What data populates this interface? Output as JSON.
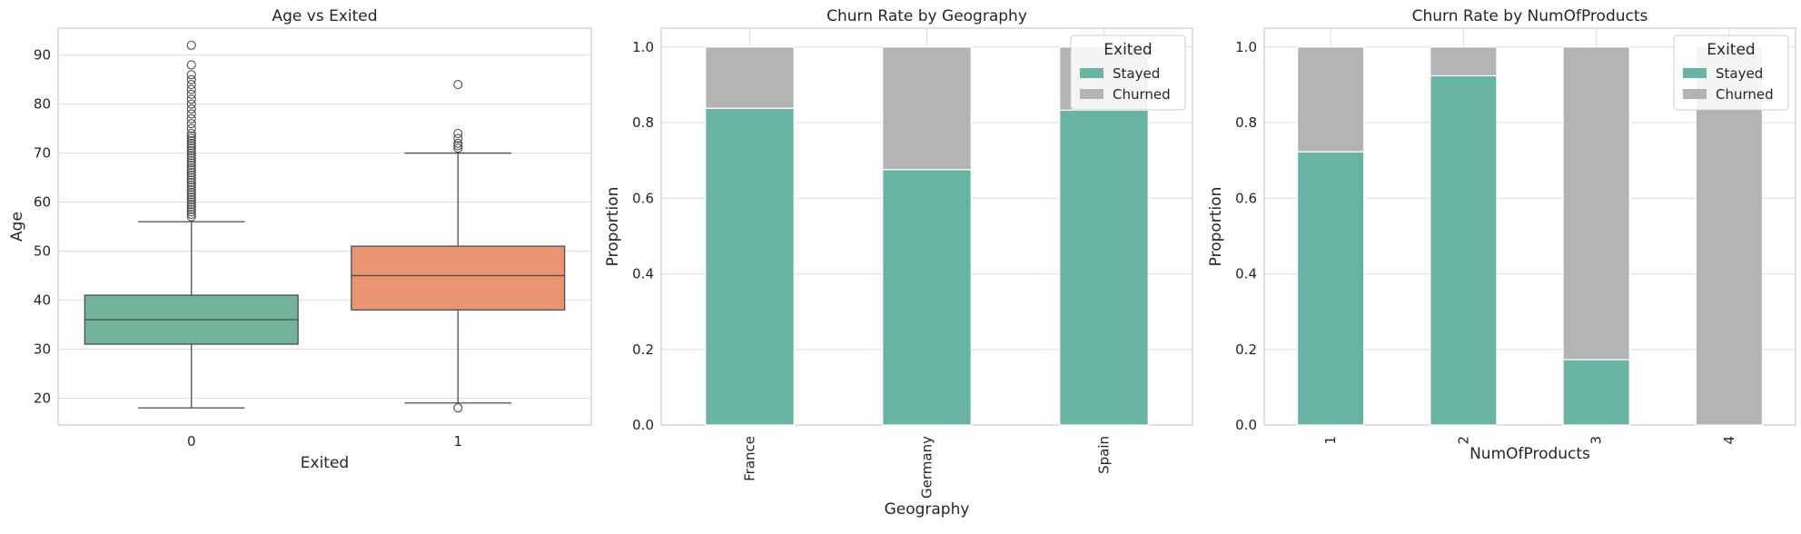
{
  "chart_data": [
    {
      "type": "box",
      "title": "Age vs Exited",
      "xlabel": "Exited",
      "ylabel": "Age",
      "categories": [
        "0",
        "1"
      ],
      "ylim": [
        14.5,
        95.5
      ],
      "yticks": [
        20,
        30,
        40,
        50,
        60,
        70,
        80,
        90
      ],
      "grid": true,
      "colors": [
        "#72b39a",
        "#e99572"
      ],
      "boxes": [
        {
          "category": "0",
          "whisker_low": 18,
          "q1": 31,
          "median": 36,
          "q3": 41,
          "whisker_high": 56,
          "outliers": [
            57,
            57.5,
            58,
            58.5,
            59,
            59.5,
            60,
            60.5,
            61,
            61.5,
            62,
            62.5,
            63,
            63.5,
            64,
            64.5,
            65,
            65.5,
            66,
            66.5,
            67,
            67.5,
            68,
            68.5,
            69,
            69.5,
            70,
            70.5,
            71,
            71.5,
            72,
            72.5,
            73,
            73.5,
            74,
            75,
            76,
            77,
            78,
            79,
            80,
            81,
            82,
            83,
            84,
            85,
            86,
            88,
            92
          ]
        },
        {
          "category": "1",
          "whisker_low": 19,
          "q1": 38,
          "median": 45,
          "q3": 51,
          "whisker_high": 70,
          "outliers": [
            18,
            71,
            71.5,
            72,
            73,
            74,
            84
          ]
        }
      ]
    },
    {
      "type": "bar",
      "stacked": true,
      "title": "Churn Rate by Geography",
      "xlabel": "Geography",
      "ylabel": "Proportion",
      "categories": [
        "France",
        "Germany",
        "Spain"
      ],
      "ylim": [
        0,
        1.05
      ],
      "yticks": [
        "0.0",
        "0.2",
        "0.4",
        "0.6",
        "0.8",
        "1.0"
      ],
      "grid": true,
      "legend_title": "Exited",
      "legend_position": "top-right",
      "series": [
        {
          "name": "Stayed",
          "color": "#69b3a2",
          "values": [
            0.838,
            0.676,
            0.833
          ]
        },
        {
          "name": "Churned",
          "color": "#b3b3b3",
          "values": [
            0.162,
            0.324,
            0.167
          ]
        }
      ]
    },
    {
      "type": "bar",
      "stacked": true,
      "title": "Churn Rate by NumOfProducts",
      "xlabel": "NumOfProducts",
      "ylabel": "Proportion",
      "categories": [
        "1",
        "2",
        "3",
        "4"
      ],
      "ylim": [
        0,
        1.05
      ],
      "yticks": [
        "0.0",
        "0.2",
        "0.4",
        "0.6",
        "0.8",
        "1.0"
      ],
      "grid": true,
      "legend_title": "Exited",
      "legend_position": "top-right",
      "series": [
        {
          "name": "Stayed",
          "color": "#69b3a2",
          "values": [
            0.723,
            0.924,
            0.173,
            0.0
          ]
        },
        {
          "name": "Churned",
          "color": "#b3b3b3",
          "values": [
            0.277,
            0.076,
            0.827,
            1.0
          ]
        }
      ]
    }
  ]
}
